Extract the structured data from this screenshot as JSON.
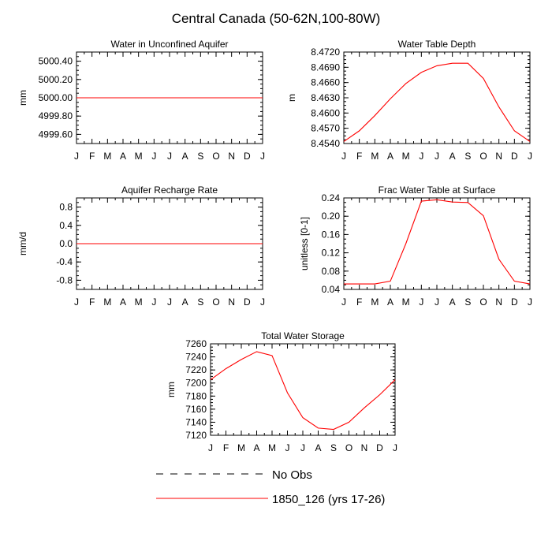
{
  "figure": {
    "title": "Central Canada (50-62N,100-80W)"
  },
  "chart_data": [
    {
      "type": "line",
      "title": "Water in Unconfined Aquifer",
      "ylabel": "mm",
      "categories": [
        "J",
        "F",
        "M",
        "A",
        "M",
        "J",
        "J",
        "A",
        "S",
        "O",
        "N",
        "D",
        "J"
      ],
      "ylim": [
        4999.5,
        5000.5
      ],
      "yticks": [
        "5000.40",
        "5000.20",
        "5000.00",
        "4999.80",
        "4999.60"
      ],
      "ytick_values": [
        5000.4,
        5000.2,
        5000.0,
        4999.8,
        4999.6
      ],
      "series": [
        {
          "name": "1850_126 (yrs 17-26)",
          "values": [
            5000,
            5000,
            5000,
            5000,
            5000,
            5000,
            5000,
            5000,
            5000,
            5000,
            5000,
            5000,
            5000
          ]
        }
      ]
    },
    {
      "type": "line",
      "title": "Water Table Depth",
      "ylabel": "m",
      "categories": [
        "J",
        "F",
        "M",
        "A",
        "M",
        "J",
        "J",
        "A",
        "S",
        "O",
        "N",
        "D",
        "J"
      ],
      "ylim": [
        8.454,
        8.472
      ],
      "yticks": [
        "8.4720",
        "8.4690",
        "8.4660",
        "8.4630",
        "8.4600",
        "8.4570",
        "8.4540"
      ],
      "ytick_values": [
        8.472,
        8.469,
        8.466,
        8.463,
        8.46,
        8.457,
        8.454
      ],
      "series": [
        {
          "name": "1850_126 (yrs 17-26)",
          "values": [
            8.4544,
            8.4565,
            8.4595,
            8.4628,
            8.4658,
            8.468,
            8.4693,
            8.4698,
            8.4698,
            8.4668,
            8.4612,
            8.4565,
            8.4544
          ]
        }
      ]
    },
    {
      "type": "line",
      "title": "Aquifer Recharge Rate",
      "ylabel": "mm/d",
      "categories": [
        "J",
        "F",
        "M",
        "A",
        "M",
        "J",
        "J",
        "A",
        "S",
        "O",
        "N",
        "D",
        "J"
      ],
      "ylim": [
        -1.0,
        1.0
      ],
      "yticks": [
        "0.8",
        "0.4",
        "0.0",
        "-0.4",
        "-0.8"
      ],
      "ytick_values": [
        0.8,
        0.4,
        0.0,
        -0.4,
        -0.8
      ],
      "series": [
        {
          "name": "1850_126 (yrs 17-26)",
          "values": [
            0,
            0,
            0,
            0,
            0,
            0,
            0,
            0,
            0,
            0,
            0,
            0,
            0
          ]
        }
      ]
    },
    {
      "type": "line",
      "title": "Frac Water Table at Surface",
      "ylabel": "unitless [0-1]",
      "categories": [
        "J",
        "F",
        "M",
        "A",
        "M",
        "J",
        "J",
        "A",
        "S",
        "O",
        "N",
        "D",
        "J"
      ],
      "ylim": [
        0.04,
        0.24
      ],
      "yticks": [
        "0.24",
        "0.20",
        "0.16",
        "0.12",
        "0.08",
        "0.04"
      ],
      "ytick_values": [
        0.24,
        0.2,
        0.16,
        0.12,
        0.08,
        0.04
      ],
      "series": [
        {
          "name": "1850_126 (yrs 17-26)",
          "values": [
            0.052,
            0.052,
            0.052,
            0.058,
            0.14,
            0.233,
            0.236,
            0.231,
            0.23,
            0.201,
            0.106,
            0.058,
            0.052
          ]
        }
      ]
    },
    {
      "type": "line",
      "title": "Total Water Storage",
      "ylabel": "mm",
      "categories": [
        "J",
        "F",
        "M",
        "A",
        "M",
        "J",
        "J",
        "A",
        "S",
        "O",
        "N",
        "D",
        "J"
      ],
      "ylim": [
        7120,
        7260
      ],
      "yticks": [
        "7260",
        "7240",
        "7220",
        "7200",
        "7180",
        "7160",
        "7140",
        "7120"
      ],
      "ytick_values": [
        7260,
        7240,
        7220,
        7200,
        7180,
        7160,
        7140,
        7120
      ],
      "series": [
        {
          "name": "1850_126 (yrs 17-26)",
          "values": [
            7205,
            7222,
            7236,
            7248,
            7242,
            7185,
            7147,
            7131,
            7129,
            7140,
            7162,
            7182,
            7205
          ]
        }
      ]
    }
  ],
  "legend": {
    "entries": [
      {
        "label": "No Obs",
        "style": "dashed",
        "color": "#000000"
      },
      {
        "label": "1850_126 (yrs 17-26)",
        "style": "solid",
        "color": "#ff0000"
      }
    ]
  },
  "colors": {
    "series": "#ff0000",
    "axis": "#000000",
    "background": "#ffffff"
  }
}
